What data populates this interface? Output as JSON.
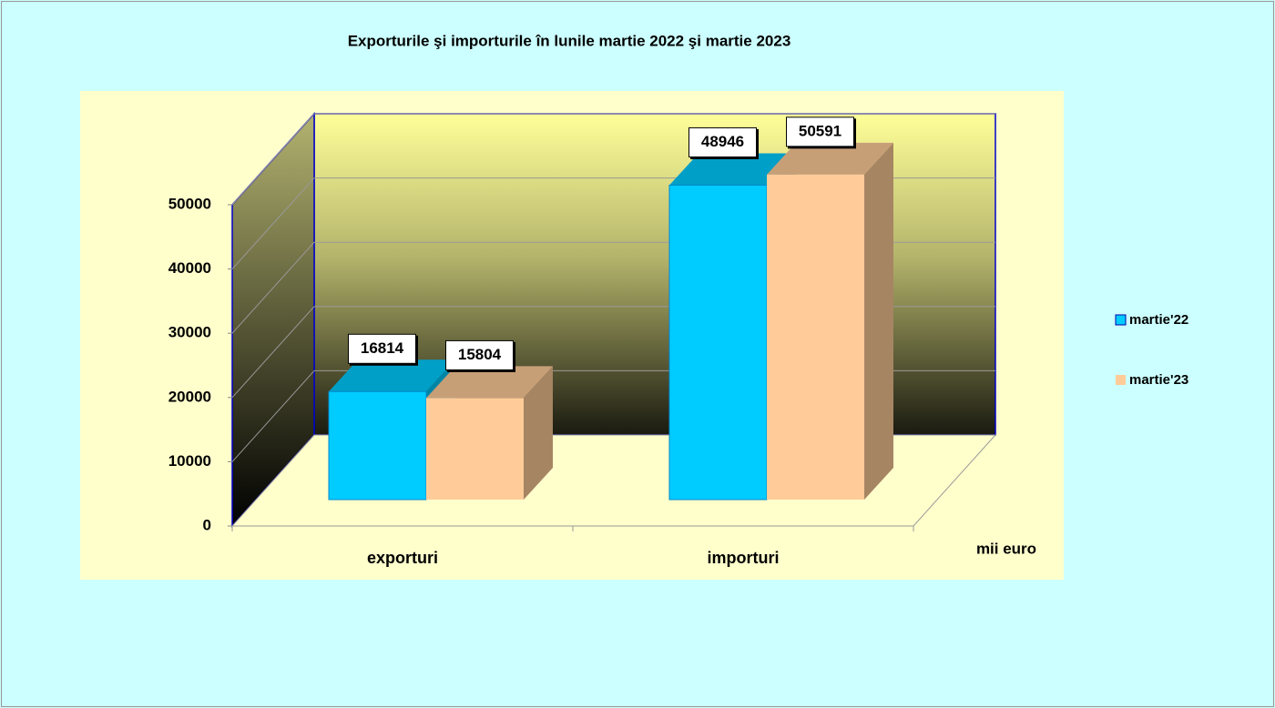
{
  "chart_data": {
    "type": "bar3d",
    "title": "Exporturile şi importurile în lunile martie 2022 şi martie 2023",
    "categories": [
      "exporturi",
      "importuri"
    ],
    "series": [
      {
        "name": "martie'22",
        "color": "#00ccff",
        "values": [
          16814,
          48946
        ]
      },
      {
        "name": "martie'23",
        "color": "#ffcc99",
        "values": [
          15804,
          50591
        ]
      }
    ],
    "ylim": [
      0,
      50000
    ],
    "yticks": [
      0,
      10000,
      20000,
      30000,
      40000,
      50000
    ],
    "y_unit_label": "mii euro",
    "grid": true,
    "legend": "right"
  }
}
